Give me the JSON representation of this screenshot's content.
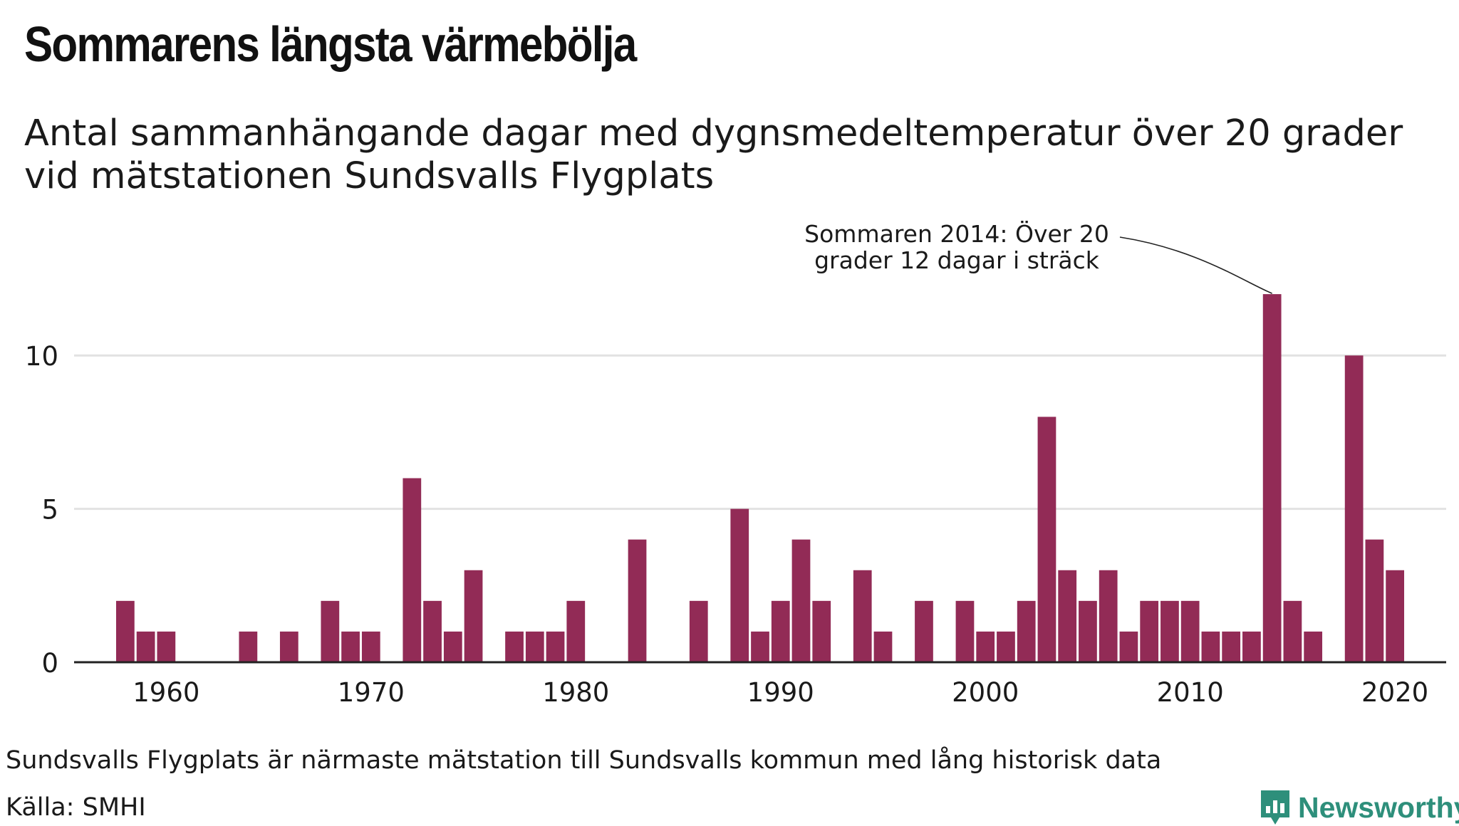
{
  "title": "Sommarens längsta värmebölja",
  "subtitle": "Antal sammanhängande dagar med dygnsmedeltemperatur över 20 grader vid mätstationen Sundsvalls Flygplats",
  "footnote": "Sundsvalls Flygplats är närmaste mätstation till Sundsvalls kommun med lång historisk data",
  "source": "Källa: SMHI",
  "brand": "Newsworthy",
  "colors": {
    "bar": "#922b56",
    "grid": "#e2e2e2",
    "axis": "#222222",
    "brand": "#2e8f7b",
    "text": "#1a1a1a"
  },
  "chart_data": {
    "type": "bar",
    "x": [
      1958,
      1959,
      1960,
      1961,
      1962,
      1963,
      1964,
      1965,
      1966,
      1967,
      1968,
      1969,
      1970,
      1971,
      1972,
      1973,
      1974,
      1975,
      1976,
      1977,
      1978,
      1979,
      1980,
      1981,
      1982,
      1983,
      1984,
      1985,
      1986,
      1987,
      1988,
      1989,
      1990,
      1991,
      1992,
      1993,
      1994,
      1995,
      1996,
      1997,
      1998,
      1999,
      2000,
      2001,
      2002,
      2003,
      2004,
      2005,
      2006,
      2007,
      2008,
      2009,
      2010,
      2011,
      2012,
      2013,
      2014,
      2015,
      2016,
      2017,
      2018,
      2019,
      2020
    ],
    "values": [
      2,
      1,
      1,
      0,
      0,
      0,
      1,
      0,
      1,
      0,
      2,
      1,
      1,
      0,
      6,
      2,
      1,
      3,
      0,
      1,
      1,
      1,
      2,
      0,
      0,
      4,
      0,
      0,
      2,
      0,
      5,
      1,
      2,
      4,
      2,
      0,
      3,
      1,
      0,
      2,
      0,
      2,
      1,
      1,
      2,
      8,
      3,
      2,
      3,
      1,
      2,
      2,
      2,
      1,
      1,
      1,
      12,
      2,
      1,
      0,
      10,
      4,
      3
    ],
    "xlim": [
      1955.5,
      2022.5
    ],
    "ylim": [
      0,
      13
    ],
    "yticks": [
      0,
      5,
      10
    ],
    "xticks": [
      1960,
      1970,
      1980,
      1990,
      2000,
      2010,
      2020
    ],
    "grid": "horizontal",
    "annotation": {
      "x": 2014,
      "y": 12,
      "lines": [
        "Sommaren 2014: Över 20",
        "grader 12 dagar i sträck"
      ]
    }
  }
}
